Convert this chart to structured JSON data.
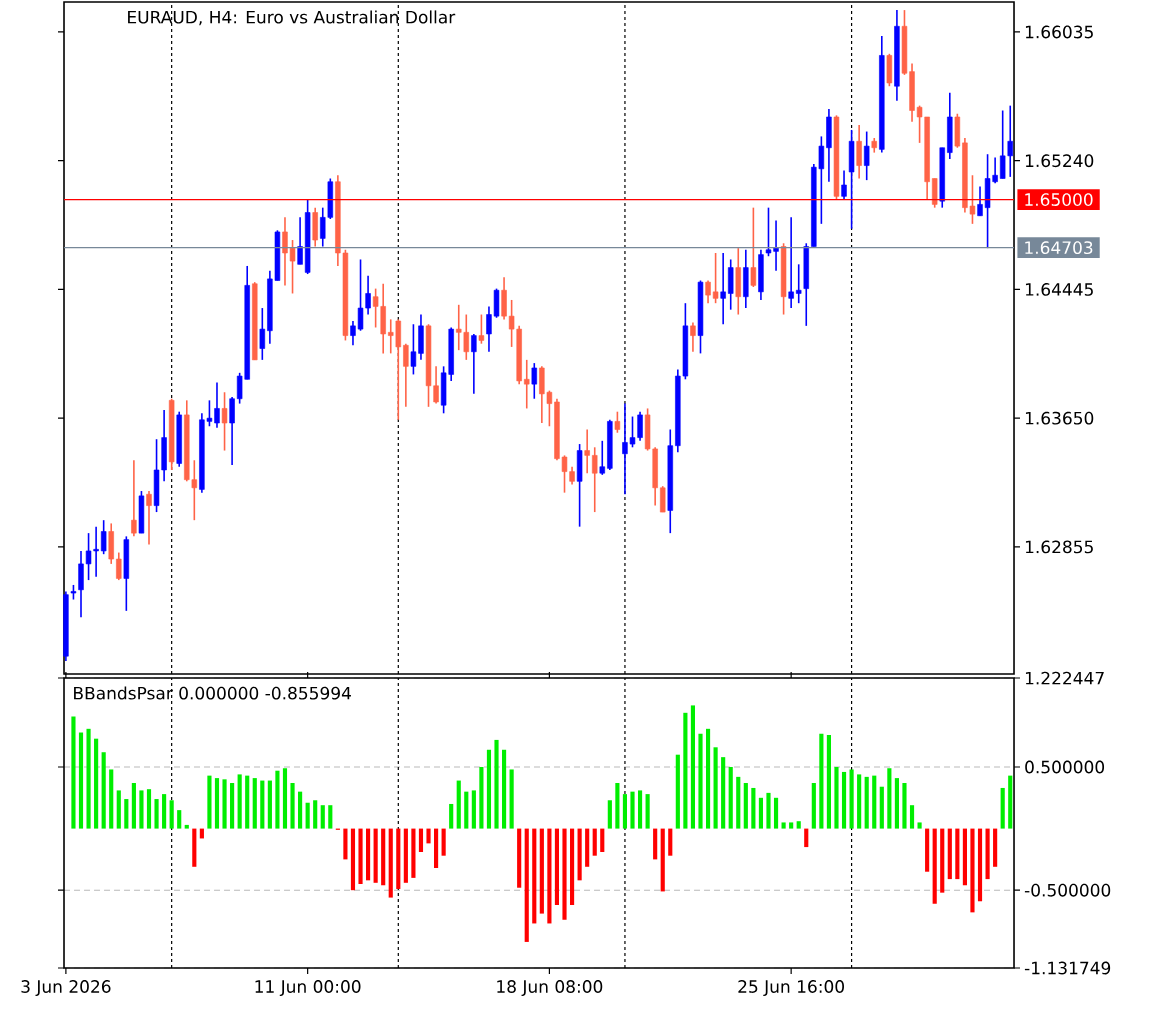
{
  "chart_data": [
    {
      "type": "candlestick",
      "title": "EURAUD, H4:  Euro vs Australian Dollar",
      "categories": [
        null,
        null,
        null,
        null,
        null,
        null,
        null,
        null,
        null,
        null,
        null,
        null,
        null,
        null,
        null,
        null,
        null,
        null,
        null,
        null,
        null,
        null,
        null,
        null,
        null,
        null,
        null,
        null,
        null,
        null,
        null,
        null,
        null,
        null,
        null,
        null,
        null,
        null,
        null,
        null,
        null,
        null,
        null,
        null,
        null,
        null,
        null,
        null,
        null,
        null,
        null,
        null,
        null,
        null,
        null,
        null,
        null,
        null,
        null,
        null,
        null,
        null,
        null,
        null,
        null,
        null,
        null,
        null,
        null,
        null,
        null,
        null,
        null,
        null,
        null,
        null,
        null,
        null,
        null,
        null,
        null,
        null,
        null,
        null,
        null,
        null,
        null,
        null,
        null,
        null,
        null,
        null,
        null,
        null,
        null,
        null,
        null,
        null,
        null,
        null,
        null,
        null,
        null,
        null,
        null,
        null,
        null,
        null,
        null,
        null,
        null,
        null,
        null,
        null,
        null,
        null,
        null,
        null,
        null,
        null,
        null,
        null,
        null,
        null,
        null,
        null
      ],
      "ohlc": [
        [
          1.6218,
          1.6258,
          1.6215,
          1.6256
        ],
        [
          1.6257,
          1.6262,
          1.6253,
          1.6258
        ],
        [
          1.6259,
          1.6283,
          1.6242,
          1.6275
        ],
        [
          1.6275,
          1.6294,
          1.6265,
          1.6283
        ],
        [
          1.6283,
          1.6298,
          1.6267,
          1.6284
        ],
        [
          1.6283,
          1.6302,
          1.6281,
          1.6295
        ],
        [
          1.6295,
          1.63,
          1.6275,
          1.6278
        ],
        [
          1.6278,
          1.6282,
          1.6265,
          1.6266
        ],
        [
          1.6266,
          1.6292,
          1.6246,
          1.629
        ],
        [
          1.6302,
          1.6339,
          1.6292,
          1.6294
        ],
        [
          1.6294,
          1.632,
          1.6294,
          1.6317
        ],
        [
          1.6318,
          1.632,
          1.6287,
          1.6311
        ],
        [
          1.6311,
          1.6352,
          1.6307,
          1.6333
        ],
        [
          1.6333,
          1.637,
          1.6326,
          1.6353
        ],
        [
          1.6376,
          1.6377,
          1.6333,
          1.6338
        ],
        [
          1.6337,
          1.6369,
          1.6335,
          1.6367
        ],
        [
          1.6367,
          1.6376,
          1.6326,
          1.6327
        ],
        [
          1.6327,
          1.6339,
          1.6302,
          1.6322
        ],
        [
          1.6321,
          1.6368,
          1.6319,
          1.6364
        ],
        [
          1.6363,
          1.6376,
          1.636,
          1.6365
        ],
        [
          1.6362,
          1.6387,
          1.6359,
          1.6371
        ],
        [
          1.6371,
          1.6381,
          1.6345,
          1.6362
        ],
        [
          1.6362,
          1.6378,
          1.6336,
          1.6377
        ],
        [
          1.6377,
          1.6393,
          1.6374,
          1.6391
        ],
        [
          1.6389,
          1.6459,
          1.6389,
          1.6447
        ],
        [
          1.6448,
          1.6449,
          1.6401,
          1.6401
        ],
        [
          1.6408,
          1.6433,
          1.6401,
          1.642
        ],
        [
          1.6419,
          1.6456,
          1.6411,
          1.6451
        ],
        [
          1.645,
          1.6481,
          1.645,
          1.648
        ],
        [
          1.648,
          1.6489,
          1.6447,
          1.6467
        ],
        [
          1.647,
          1.6475,
          1.6442,
          1.6462
        ],
        [
          1.646,
          1.6489,
          1.646,
          1.6471
        ],
        [
          1.6455,
          1.65,
          1.6454,
          1.6492
        ],
        [
          1.6492,
          1.6495,
          1.6471,
          1.6475
        ],
        [
          1.6476,
          1.6495,
          1.6471,
          1.6489
        ],
        [
          1.6489,
          1.6513,
          1.6488,
          1.6511
        ],
        [
          1.6511,
          1.6515,
          1.6459,
          1.6467
        ],
        [
          1.6467,
          1.6469,
          1.6413,
          1.6416
        ],
        [
          1.6416,
          1.6425,
          1.641,
          1.6422
        ],
        [
          1.642,
          1.6463,
          1.6419,
          1.6433
        ],
        [
          1.6433,
          1.6453,
          1.6429,
          1.6442
        ],
        [
          1.644,
          1.6445,
          1.6421,
          1.6434
        ],
        [
          1.6434,
          1.6448,
          1.6405,
          1.6417
        ],
        [
          1.6418,
          1.6426,
          1.6405,
          1.6416
        ],
        [
          1.6425,
          1.6426,
          1.6364,
          1.6409
        ],
        [
          1.641,
          1.6411,
          1.6372,
          1.6397
        ],
        [
          1.6397,
          1.6423,
          1.6392,
          1.6406
        ],
        [
          1.6405,
          1.6429,
          1.6401,
          1.6422
        ],
        [
          1.6422,
          1.6423,
          1.6372,
          1.6385
        ],
        [
          1.6385,
          1.6397,
          1.6374,
          1.6375
        ],
        [
          1.6373,
          1.6397,
          1.6368,
          1.6393
        ],
        [
          1.6392,
          1.6421,
          1.6388,
          1.642
        ],
        [
          1.642,
          1.6435,
          1.6407,
          1.6418
        ],
        [
          1.6418,
          1.6429,
          1.6401,
          1.6406
        ],
        [
          1.6406,
          1.6417,
          1.638,
          1.6416
        ],
        [
          1.6416,
          1.6429,
          1.6411,
          1.6413
        ],
        [
          1.6417,
          1.6434,
          1.6406,
          1.6429
        ],
        [
          1.6428,
          1.6445,
          1.6427,
          1.6444
        ],
        [
          1.6444,
          1.6452,
          1.6426,
          1.6428
        ],
        [
          1.6428,
          1.6438,
          1.6409,
          1.642
        ],
        [
          1.642,
          1.6422,
          1.6386,
          1.6388
        ],
        [
          1.6389,
          1.6401,
          1.6371,
          1.6386
        ],
        [
          1.6386,
          1.6399,
          1.6377,
          1.6396
        ],
        [
          1.6396,
          1.6397,
          1.6362,
          1.638
        ],
        [
          1.6381,
          1.6382,
          1.636,
          1.6374
        ],
        [
          1.6375,
          1.6377,
          1.6339,
          1.634
        ],
        [
          1.6341,
          1.6342,
          1.6319,
          1.6332
        ],
        [
          1.6332,
          1.6335,
          1.6324,
          1.6326
        ],
        [
          1.6326,
          1.6349,
          1.6298,
          1.6345
        ],
        [
          1.6345,
          1.6358,
          1.6331,
          1.6342
        ],
        [
          1.6342,
          1.6347,
          1.6307,
          1.6331
        ],
        [
          1.6331,
          1.6351,
          1.633,
          1.6335
        ],
        [
          1.6334,
          1.6364,
          1.6333,
          1.6363
        ],
        [
          1.6363,
          1.6369,
          1.6356,
          1.6358
        ],
        [
          1.6343,
          1.6374,
          1.6318,
          1.635
        ],
        [
          1.6349,
          1.6366,
          1.6347,
          1.6353
        ],
        [
          1.6353,
          1.6369,
          1.6351,
          1.6367
        ],
        [
          1.6367,
          1.6371,
          1.6345,
          1.6346
        ],
        [
          1.6346,
          1.6347,
          1.6311,
          1.6322
        ],
        [
          1.6322,
          1.6323,
          1.6307,
          1.6307
        ],
        [
          1.6308,
          1.6358,
          1.6294,
          1.6348
        ],
        [
          1.6348,
          1.6395,
          1.6344,
          1.6391
        ],
        [
          1.6391,
          1.6436,
          1.6389,
          1.6422
        ],
        [
          1.6422,
          1.6424,
          1.6406,
          1.6416
        ],
        [
          1.6416,
          1.645,
          1.6405,
          1.6449
        ],
        [
          1.6449,
          1.645,
          1.6436,
          1.6441
        ],
        [
          1.6443,
          1.6467,
          1.6436,
          1.6439
        ],
        [
          1.6439,
          1.6467,
          1.6423,
          1.6443
        ],
        [
          1.6442,
          1.6463,
          1.6432,
          1.6458
        ],
        [
          1.6458,
          1.647,
          1.6429,
          1.644
        ],
        [
          1.644,
          1.6469,
          1.6433,
          1.6458
        ],
        [
          1.6458,
          1.6495,
          1.6446,
          1.6447
        ],
        [
          1.6443,
          1.6469,
          1.6438,
          1.6466
        ],
        [
          1.6467,
          1.6495,
          1.6465,
          1.6469
        ],
        [
          1.6468,
          1.6487,
          1.6456,
          1.647
        ],
        [
          1.6471,
          1.6473,
          1.6429,
          1.644
        ],
        [
          1.6439,
          1.6489,
          1.6433,
          1.6443
        ],
        [
          1.6442,
          1.646,
          1.6436,
          1.6444
        ],
        [
          1.6445,
          1.6473,
          1.6422,
          1.6471
        ],
        [
          1.6471,
          1.6522,
          1.6471,
          1.652
        ],
        [
          1.6519,
          1.6539,
          1.6485,
          1.6533
        ],
        [
          1.6532,
          1.6556,
          1.6511,
          1.6551
        ],
        [
          1.6551,
          1.6552,
          1.65,
          1.6502
        ],
        [
          1.6502,
          1.6518,
          1.65,
          1.6509
        ],
        [
          1.6517,
          1.6543,
          1.6482,
          1.6536
        ],
        [
          1.6536,
          1.6546,
          1.6513,
          1.6521
        ],
        [
          1.6521,
          1.6542,
          1.6512,
          1.6533
        ],
        [
          1.6536,
          1.6538,
          1.6529,
          1.6532
        ],
        [
          1.6531,
          1.6601,
          1.6529,
          1.6589
        ],
        [
          1.6589,
          1.659,
          1.657,
          1.6572
        ],
        [
          1.657,
          1.6617,
          1.6561,
          1.6607
        ],
        [
          1.6607,
          1.6617,
          1.6577,
          1.6578
        ],
        [
          1.6579,
          1.6584,
          1.6548,
          1.6555
        ],
        [
          1.6557,
          1.6558,
          1.6535,
          1.6551
        ],
        [
          1.6551,
          1.6551,
          1.65,
          1.6511
        ],
        [
          1.6513,
          1.6513,
          1.6495,
          1.6497
        ],
        [
          1.6499,
          1.6532,
          1.6495,
          1.6532
        ],
        [
          1.6529,
          1.6566,
          1.6525,
          1.6551
        ],
        [
          1.6551,
          1.6553,
          1.6532,
          1.6533
        ],
        [
          1.6535,
          1.6538,
          1.6492,
          1.6495
        ],
        [
          1.6496,
          1.6515,
          1.6485,
          1.6491
        ],
        [
          1.649,
          1.6508,
          1.649,
          1.6497
        ],
        [
          1.6495,
          1.6528,
          1.647,
          1.6513
        ],
        [
          1.6511,
          1.6526,
          1.651,
          1.6515
        ],
        [
          1.6513,
          1.6555,
          1.6513,
          1.6527
        ],
        [
          1.6527,
          1.6558,
          1.6514,
          1.6536
        ]
      ],
      "colors": [
        "#0000ff",
        "#0000ff",
        "#0000ff",
        "#0000ff",
        "#0000ff",
        "#0000ff",
        "#ff6347",
        "#ff6347",
        "#0000ff",
        "#ff6347",
        "#0000ff",
        "#ff6347",
        "#0000ff",
        "#0000ff",
        "#ff6347",
        "#0000ff",
        "#ff6347",
        "#ff6347",
        "#0000ff",
        "#0000ff",
        "#0000ff",
        "#ff6347",
        "#0000ff",
        "#0000ff",
        "#0000ff",
        "#ff6347",
        "#0000ff",
        "#0000ff",
        "#0000ff",
        "#ff6347",
        "#ff6347",
        "#0000ff",
        "#0000ff",
        "#ff6347",
        "#0000ff",
        "#0000ff",
        "#ff6347",
        "#ff6347",
        "#0000ff",
        "#0000ff",
        "#0000ff",
        "#ff6347",
        "#ff6347",
        "#ff6347",
        "#ff6347",
        "#ff6347",
        "#0000ff",
        "#0000ff",
        "#ff6347",
        "#ff6347",
        "#0000ff",
        "#0000ff",
        "#ff6347",
        "#ff6347",
        "#0000ff",
        "#ff6347",
        "#0000ff",
        "#0000ff",
        "#ff6347",
        "#ff6347",
        "#ff6347",
        "#ff6347",
        "#0000ff",
        "#ff6347",
        "#ff6347",
        "#ff6347",
        "#ff6347",
        "#ff6347",
        "#0000ff",
        "#ff6347",
        "#ff6347",
        "#0000ff",
        "#0000ff",
        "#ff6347",
        "#0000ff",
        "#0000ff",
        "#0000ff",
        "#ff6347",
        "#ff6347",
        "#ff6347",
        "#0000ff",
        "#0000ff",
        "#0000ff",
        "#ff6347",
        "#0000ff",
        "#ff6347",
        "#ff6347",
        "#0000ff",
        "#0000ff",
        "#ff6347",
        "#0000ff",
        "#ff6347",
        "#0000ff",
        "#0000ff",
        "#0000ff",
        "#ff6347",
        "#0000ff",
        "#0000ff",
        "#0000ff",
        "#0000ff",
        "#0000ff",
        "#0000ff",
        "#ff6347",
        "#0000ff",
        "#0000ff",
        "#ff6347",
        "#0000ff",
        "#ff6347",
        "#0000ff",
        "#ff6347",
        "#0000ff",
        "#ff6347",
        "#ff6347",
        "#ff6347",
        "#ff6347",
        "#ff6347",
        "#0000ff",
        "#0000ff",
        "#ff6347",
        "#ff6347",
        "#ff6347",
        "#0000ff",
        "#0000ff",
        "#0000ff",
        "#0000ff",
        "#0000ff"
      ],
      "ylim": [
        1.6207,
        1.6622
      ],
      "yticks": [
        1.62855,
        {
          "value": 1.6365,
          "label": "1.63650"
        },
        1.64445,
        {
          "value": 1.6524,
          "label": "1.65240"
        },
        1.66035
      ],
      "tick_labels": "y",
      "ref_lines": [
        {
          "axis": "y",
          "value": 1.65,
          "label": "1.65000",
          "color": "#ff0000"
        },
        {
          "axis": "y",
          "value": 1.64703,
          "label": "1.64703",
          "color": "#778899"
        }
      ]
    },
    {
      "type": "bar",
      "title": "BBandsPsar 0.000000 -0.855994",
      "categories": [
        "3 Jun 2026",
        null,
        null,
        null,
        null,
        null,
        null,
        null,
        null,
        null,
        null,
        null,
        null,
        null,
        null,
        null,
        null,
        null,
        null,
        null,
        null,
        null,
        null,
        null,
        null,
        null,
        null,
        null,
        null,
        null,
        null,
        null,
        "11 Jun 00:00",
        null,
        null,
        null,
        null,
        null,
        null,
        null,
        null,
        null,
        null,
        null,
        null,
        null,
        null,
        null,
        null,
        null,
        null,
        null,
        null,
        null,
        null,
        null,
        null,
        null,
        null,
        null,
        null,
        null,
        null,
        null,
        "18 Jun 08:00",
        null,
        null,
        null,
        null,
        null,
        null,
        null,
        null,
        null,
        null,
        null,
        null,
        null,
        null,
        null,
        null,
        null,
        null,
        null,
        null,
        null,
        null,
        null,
        null,
        null,
        null,
        null,
        null,
        null,
        null,
        null,
        "25 Jun 16:00",
        null,
        null,
        null,
        null,
        null,
        null,
        null,
        null,
        null,
        null,
        null,
        null,
        null,
        null,
        null,
        null,
        null,
        null,
        null,
        null,
        null,
        null,
        null,
        null,
        null,
        null,
        null,
        null,
        null
      ],
      "values": [
        null,
        0.91,
        0.78,
        0.81,
        0.73,
        0.62,
        0.48,
        0.31,
        0.24,
        0.37,
        0.31,
        0.32,
        0.24,
        0.28,
        0.23,
        0.15,
        0.03,
        -0.31,
        -0.08,
        0.43,
        0.41,
        0.4,
        0.37,
        0.44,
        0.43,
        0.41,
        0.39,
        0.39,
        0.47,
        0.49,
        0.37,
        0.3,
        0.21,
        0.23,
        0.19,
        0.19,
        -0.01,
        -0.25,
        -0.5,
        -0.45,
        -0.42,
        -0.44,
        -0.46,
        -0.56,
        -0.49,
        -0.44,
        -0.4,
        -0.19,
        -0.12,
        -0.32,
        -0.22,
        0.2,
        0.39,
        0.3,
        0.31,
        0.5,
        0.64,
        0.72,
        0.64,
        0.48,
        -0.48,
        -0.92,
        -0.77,
        -0.69,
        -0.77,
        -0.62,
        -0.74,
        -0.62,
        -0.42,
        -0.31,
        -0.22,
        -0.19,
        0.23,
        0.37,
        0.28,
        0.3,
        0.31,
        0.28,
        -0.25,
        -0.51,
        -0.22,
        0.6,
        0.94,
        1.0,
        0.77,
        0.81,
        0.66,
        0.58,
        0.5,
        0.42,
        0.37,
        0.33,
        0.25,
        0.29,
        0.25,
        0.05,
        0.05,
        0.06,
        -0.15,
        0.37,
        0.77,
        0.76,
        0.5,
        0.46,
        0.48,
        0.44,
        0.42,
        0.43,
        0.34,
        0.49,
        0.41,
        0.37,
        0.19,
        0.05,
        -0.35,
        -0.61,
        -0.52,
        -0.41,
        -0.41,
        -0.46,
        -0.68,
        -0.59,
        -0.41,
        -0.31,
        0.33,
        0.43
      ],
      "colors": [
        null,
        "#00ee00",
        "#00ee00",
        "#00ee00",
        "#00ee00",
        "#00ee00",
        "#00ee00",
        "#00ee00",
        "#00ee00",
        "#00ee00",
        "#00ee00",
        "#00ee00",
        "#00ee00",
        "#00ee00",
        "#00ee00",
        "#00ee00",
        "#00ee00",
        "#ff0000",
        "#ff0000",
        "#00ee00",
        "#00ee00",
        "#00ee00",
        "#00ee00",
        "#00ee00",
        "#00ee00",
        "#00ee00",
        "#00ee00",
        "#00ee00",
        "#00ee00",
        "#00ee00",
        "#00ee00",
        "#00ee00",
        "#00ee00",
        "#00ee00",
        "#00ee00",
        "#00ee00",
        "#ff0000",
        "#ff0000",
        "#ff0000",
        "#ff0000",
        "#ff0000",
        "#ff0000",
        "#ff0000",
        "#ff0000",
        "#ff0000",
        "#ff0000",
        "#ff0000",
        "#ff0000",
        "#ff0000",
        "#ff0000",
        "#ff0000",
        "#00ee00",
        "#00ee00",
        "#00ee00",
        "#00ee00",
        "#00ee00",
        "#00ee00",
        "#00ee00",
        "#00ee00",
        "#00ee00",
        "#ff0000",
        "#ff0000",
        "#ff0000",
        "#ff0000",
        "#ff0000",
        "#ff0000",
        "#ff0000",
        "#ff0000",
        "#ff0000",
        "#ff0000",
        "#ff0000",
        "#ff0000",
        "#00ee00",
        "#00ee00",
        "#00ee00",
        "#00ee00",
        "#00ee00",
        "#00ee00",
        "#ff0000",
        "#ff0000",
        "#ff0000",
        "#00ee00",
        "#00ee00",
        "#00ee00",
        "#00ee00",
        "#00ee00",
        "#00ee00",
        "#00ee00",
        "#00ee00",
        "#00ee00",
        "#00ee00",
        "#00ee00",
        "#00ee00",
        "#00ee00",
        "#00ee00",
        "#00ee00",
        "#00ee00",
        "#00ee00",
        "#ff0000",
        "#00ee00",
        "#00ee00",
        "#00ee00",
        "#00ee00",
        "#00ee00",
        "#00ee00",
        "#00ee00",
        "#00ee00",
        "#00ee00",
        "#00ee00",
        "#00ee00",
        "#00ee00",
        "#00ee00",
        "#00ee00",
        "#00ee00",
        "#ff0000",
        "#ff0000",
        "#ff0000",
        "#ff0000",
        "#ff0000",
        "#ff0000",
        "#ff0000",
        "#ff0000",
        "#ff0000",
        "#ff0000",
        "#00ee00",
        "#00ee00"
      ],
      "ylim": [
        -1.131749,
        1.222447
      ],
      "yticks": [
        -1.131749,
        {
          "value": -0.5,
          "label": "-0.500000"
        },
        {
          "value": 0.5,
          "label": "0.500000"
        },
        1.222447
      ],
      "grid": "y"
    }
  ]
}
